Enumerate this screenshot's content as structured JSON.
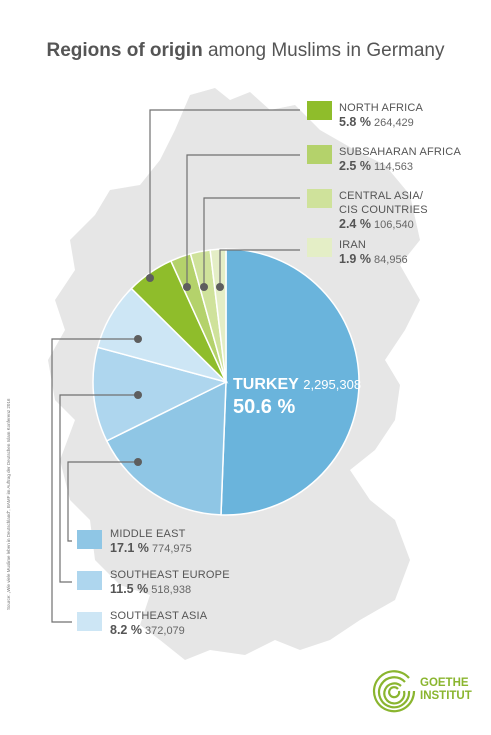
{
  "title": {
    "bold": "Regions of origin",
    "rest": " among Muslims in Germany"
  },
  "chart_data": {
    "type": "pie",
    "title": "Regions of origin among Muslims in Germany",
    "slices": [
      {
        "name": "TURKEY",
        "percent_label": "50.6 %",
        "count": "2,295,308",
        "value": 50.6,
        "color": "#6ab4dc"
      },
      {
        "name": "MIDDLE EAST",
        "percent_label": "17.1 %",
        "count": "774,975",
        "value": 17.1,
        "color": "#8fc6e5"
      },
      {
        "name": "SOUTHEAST EUROPE",
        "percent_label": "11.5 %",
        "count": "518,938",
        "value": 11.5,
        "color": "#aed6ee"
      },
      {
        "name": "SOUTHEAST ASIA",
        "percent_label": "8.2 %",
        "count": "372,079",
        "value": 8.2,
        "color": "#cde6f5"
      },
      {
        "name": "NORTH AFRICA",
        "percent_label": "5.8 %",
        "count": "264,429",
        "value": 5.8,
        "color": "#8fbd2b"
      },
      {
        "name": "SUBSAHARAN AFRICA",
        "percent_label": "2.5 %",
        "count": "114,563",
        "value": 2.5,
        "color": "#b4d26b"
      },
      {
        "name": "CENTRAL ASIA/ CIS COUNTRIES",
        "percent_label": "2.4 %",
        "count": "106,540",
        "value": 2.4,
        "color": "#cfe29b"
      },
      {
        "name": "IRAN",
        "percent_label": "1.9 %",
        "count": "84,956",
        "value": 1.9,
        "color": "#e4eec6"
      }
    ]
  },
  "legend_top": [
    {
      "line1": "NORTH AFRICA",
      "line2": "",
      "pct": "5.8 %",
      "cnt": "264,429",
      "color": "#8fbd2b"
    },
    {
      "line1": "SUBSAHARAN AFRICA",
      "line2": "",
      "pct": "2.5 %",
      "cnt": "114,563",
      "color": "#b4d26b"
    },
    {
      "line1": "CENTRAL ASIA/",
      "line2": "CIS COUNTRIES",
      "pct": "2.4 %",
      "cnt": "106,540",
      "color": "#cfe29b"
    },
    {
      "line1": "IRAN",
      "line2": "",
      "pct": "1.9 %",
      "cnt": "84,956",
      "color": "#e4eec6"
    }
  ],
  "legend_bottom": [
    {
      "line1": "MIDDLE EAST",
      "pct": "17.1 %",
      "cnt": "774,975",
      "color": "#8fc6e5"
    },
    {
      "line1": "SOUTHEAST EUROPE",
      "pct": "11.5 %",
      "cnt": "518,938",
      "color": "#aed6ee"
    },
    {
      "line1": "SOUTHEAST ASIA",
      "pct": "8.2 %",
      "cnt": "372,079",
      "color": "#cde6f5"
    }
  ],
  "turkey_label": {
    "name": "TURKEY",
    "count": "2,295,308",
    "pct": "50.6 %"
  },
  "source": "Source: „Wie viele Muslime leben in Deutschland\", BAMF im Auftrag der Deutschen Islam Konferenz 2016",
  "logo": {
    "line1": "GOETHE",
    "line2": "INSTITUT"
  },
  "colors": {
    "map": "#e6e6e6",
    "connector": "#707070",
    "brand": "#8ab52f"
  }
}
